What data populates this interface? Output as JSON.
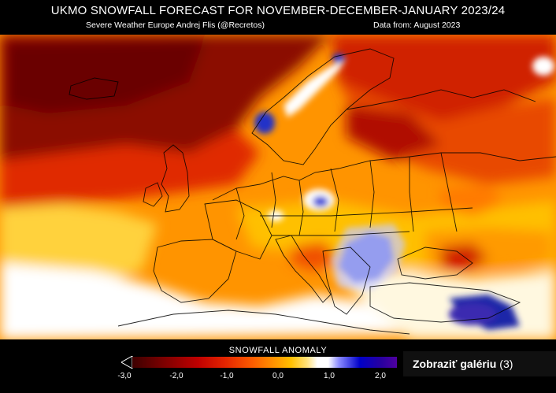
{
  "header": {
    "title": "UKMO SNOWFALL FORECAST FOR  NOVEMBER-DECEMBER-JANUARY 2023/24",
    "credit": "Severe Weather Europe   Andrej Flis (@Recretos)",
    "data_from": "Data from: August 2023"
  },
  "legend": {
    "title": "SNOWFALL ANOMALY",
    "ticks": [
      "-3,0",
      "-2,0",
      "-1,0",
      "0,0",
      "1,0",
      "2,0"
    ],
    "colors": [
      "#3c0000",
      "#7d0000",
      "#c00000",
      "#e32400",
      "#fb5a00",
      "#ff8f00",
      "#ffbf00",
      "#ffe17a",
      "#ffffff",
      "#ffffff",
      "#8c8cff",
      "#0000c8",
      "#2800a0",
      "#5000a0"
    ]
  },
  "gallery_button": {
    "label": "Zobraziť galériu",
    "count": "(3)"
  },
  "map_colors": {
    "deep_red": "#8b0000",
    "red": "#d01e00",
    "orange": "#ff7d00",
    "yellow": "#ffd23c",
    "white": "#ffffff",
    "blue": "#2030c8"
  }
}
